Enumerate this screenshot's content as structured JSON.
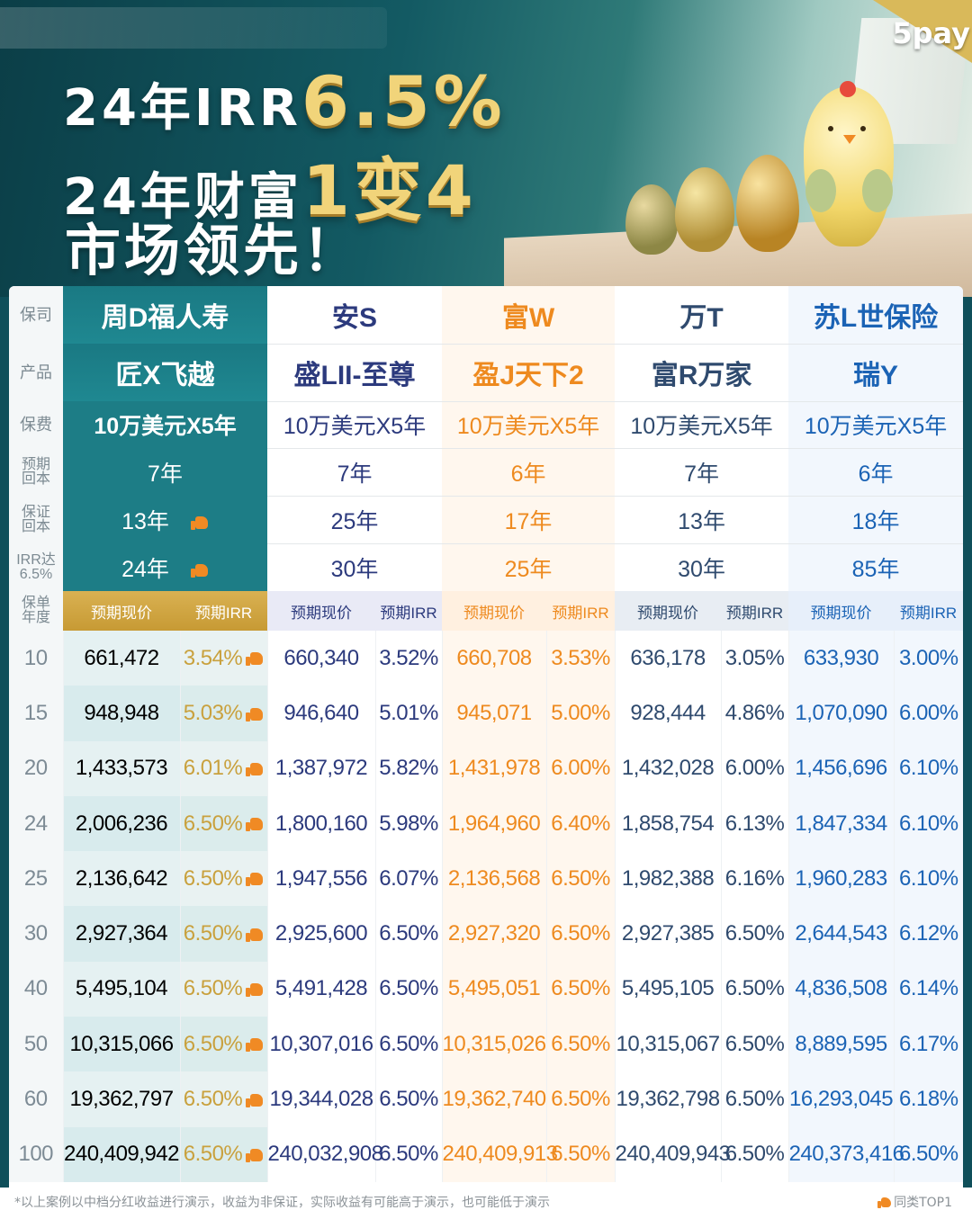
{
  "hero": {
    "brand": "5pay",
    "line1_prefix": "24年IRR",
    "line1_highlight": "6.5%",
    "line2_prefix": "24年财富",
    "line2_highlight": "1变4",
    "line3": "市场领先！"
  },
  "row_labels": {
    "insurer": "保司",
    "product": "产品",
    "premium": "保费",
    "expected_payback": "预期\n回本",
    "guaranteed_payback": "保证\n回本",
    "irr_reach": "IRR达\n6.5%",
    "policy_year": "保单\n年度"
  },
  "sub_headers": {
    "cash_value": "预期现价",
    "irr": "预期IRR"
  },
  "products": [
    {
      "insurer": "周D福人寿",
      "product": "匠X飞越",
      "premium": "10万美元X5年",
      "expected_payback": "7年",
      "guaranteed_payback": "13年",
      "irr_reach": "24年"
    },
    {
      "insurer": "安S",
      "product": "盛LII-至尊",
      "premium": "10万美元X5年",
      "expected_payback": "7年",
      "guaranteed_payback": "25年",
      "irr_reach": "30年"
    },
    {
      "insurer": "富W",
      "product": "盈J天下2",
      "premium": "10万美元X5年",
      "expected_payback": "6年",
      "guaranteed_payback": "17年",
      "irr_reach": "25年"
    },
    {
      "insurer": "万T",
      "product": "富R万家",
      "premium": "10万美元X5年",
      "expected_payback": "7年",
      "guaranteed_payback": "13年",
      "irr_reach": "30年"
    },
    {
      "insurer": "苏L世保险",
      "product": "瑞Y",
      "premium": "10万美元X5年",
      "expected_payback": "6年",
      "guaranteed_payback": "18年",
      "irr_reach": "85年"
    }
  ],
  "rows": [
    {
      "year": "10",
      "v": [
        "661,472",
        "3.54%",
        "660,340",
        "3.52%",
        "660,708",
        "3.53%",
        "636,178",
        "3.05%",
        "633,930",
        "3.00%"
      ]
    },
    {
      "year": "15",
      "v": [
        "948,948",
        "5.03%",
        "946,640",
        "5.01%",
        "945,071",
        "5.00%",
        "928,444",
        "4.86%",
        "1,070,090",
        "6.00%"
      ]
    },
    {
      "year": "20",
      "v": [
        "1,433,573",
        "6.01%",
        "1,387,972",
        "5.82%",
        "1,431,978",
        "6.00%",
        "1,432,028",
        "6.00%",
        "1,456,696",
        "6.10%"
      ]
    },
    {
      "year": "24",
      "v": [
        "2,006,236",
        "6.50%",
        "1,800,160",
        "5.98%",
        "1,964,960",
        "6.40%",
        "1,858,754",
        "6.13%",
        "1,847,334",
        "6.10%"
      ]
    },
    {
      "year": "25",
      "v": [
        "2,136,642",
        "6.50%",
        "1,947,556",
        "6.07%",
        "2,136,568",
        "6.50%",
        "1,982,388",
        "6.16%",
        "1,960,283",
        "6.10%"
      ]
    },
    {
      "year": "30",
      "v": [
        "2,927,364",
        "6.50%",
        "2,925,600",
        "6.50%",
        "2,927,320",
        "6.50%",
        "2,927,385",
        "6.50%",
        "2,644,543",
        "6.12%"
      ]
    },
    {
      "year": "40",
      "v": [
        "5,495,104",
        "6.50%",
        "5,491,428",
        "6.50%",
        "5,495,051",
        "6.50%",
        "5,495,105",
        "6.50%",
        "4,836,508",
        "6.14%"
      ]
    },
    {
      "year": "50",
      "v": [
        "10,315,066",
        "6.50%",
        "10,307,016",
        "6.50%",
        "10,315,026",
        "6.50%",
        "10,315,067",
        "6.50%",
        "8,889,595",
        "6.17%"
      ]
    },
    {
      "year": "60",
      "v": [
        "19,362,797",
        "6.50%",
        "19,344,028",
        "6.50%",
        "19,362,740",
        "6.50%",
        "19,362,798",
        "6.50%",
        "16,293,045",
        "6.18%"
      ]
    },
    {
      "year": "100",
      "v": [
        "240,409,942",
        "6.50%",
        "240,032,908",
        "6.50%",
        "240,409,913",
        "6.50%",
        "240,409,943",
        "6.50%",
        "240,373,416",
        "6.50%"
      ]
    }
  ],
  "footer": {
    "disclaimer": "*以上案例以中档分红收益进行演示，收益为非保证，实际收益有可能高于演示，也可能低于演示",
    "badge": "同类TOP1"
  },
  "colors": {
    "featured": "#1d7d86",
    "gold": "#c9a13e",
    "an": "#2c3a7d",
    "fu": "#ee8a1f",
    "wa": "#2f4a6e",
    "su": "#1b63b5"
  }
}
